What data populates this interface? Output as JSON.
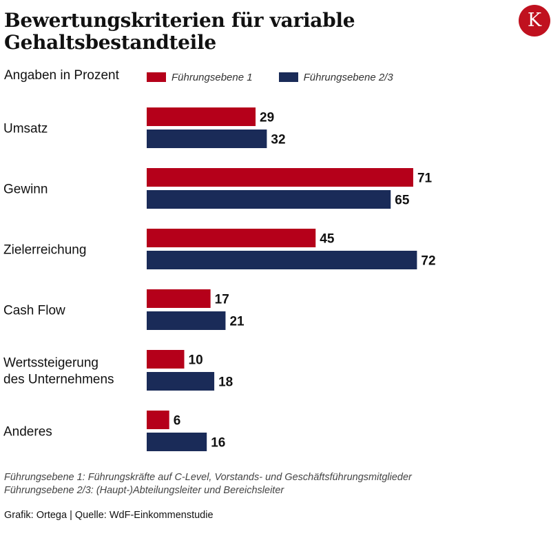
{
  "title": "Bewertungskriterien für variable Gehaltsbestandteile",
  "subtitle": "Angaben in Prozent",
  "logo": "K",
  "colors": {
    "series1": "#b5001a",
    "series2": "#1a2b58",
    "logo_bg": "#c0111f"
  },
  "legend": [
    {
      "label": "Führungsebene 1",
      "color": "#b5001a"
    },
    {
      "label": "Führungsebene 2/3",
      "color": "#1a2b58"
    }
  ],
  "chart_data": {
    "type": "bar",
    "orientation": "horizontal",
    "title": "Bewertungskriterien für variable Gehaltsbestandteile",
    "subtitle": "Angaben in Prozent",
    "categories": [
      [
        "Umsatz"
      ],
      [
        "Gewinn"
      ],
      [
        "Zielerreichung"
      ],
      [
        "Cash Flow"
      ],
      [
        "Wertssteigerung",
        "des Unternehmens"
      ],
      [
        "Anderes"
      ]
    ],
    "series": [
      {
        "name": "Führungsebene 1",
        "color": "#b5001a",
        "values": [
          29,
          71,
          45,
          17,
          10,
          6
        ]
      },
      {
        "name": "Führungsebene 2/3",
        "color": "#1a2b58",
        "values": [
          32,
          65,
          72,
          21,
          18,
          16
        ]
      }
    ],
    "xlim": [
      0,
      100
    ],
    "grid": false,
    "legend_position": "top"
  },
  "notes": [
    "Führungsebene 1: Führungskräfte auf C-Level, Vorstands- und Geschäftsführungsmitglieder",
    "Führungsebene 2/3:  (Haupt-)Abteilungsleiter und Bereichsleiter"
  ],
  "source": "Grafik: Ortega | Quelle: WdF-Einkommenstudie"
}
